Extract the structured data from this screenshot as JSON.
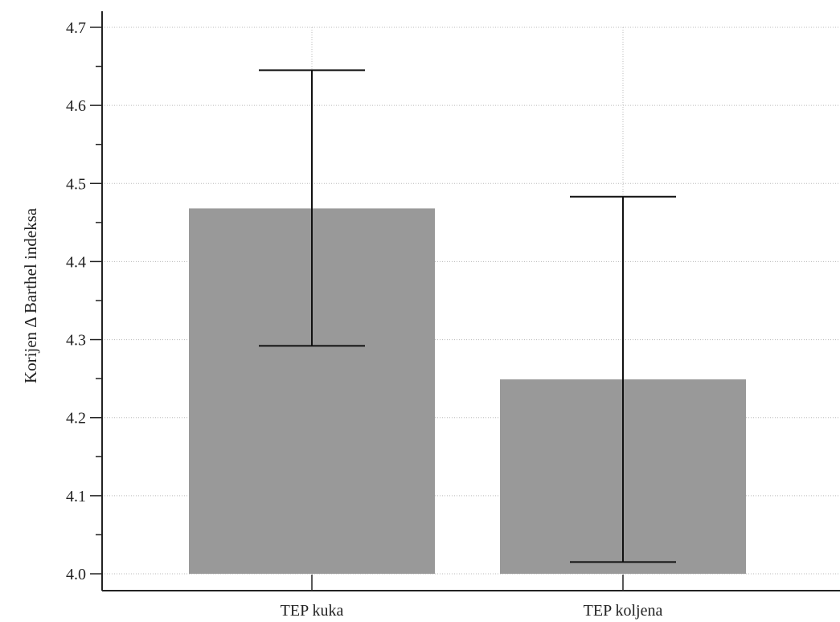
{
  "chart_data": {
    "type": "bar",
    "title": "",
    "xlabel": "",
    "ylabel": "Korijen Δ Barthel indeksa",
    "categories": [
      "TEP kuka",
      "TEP koljena"
    ],
    "values": [
      4.468,
      4.249
    ],
    "error_low": [
      4.292,
      4.015
    ],
    "error_high": [
      4.645,
      4.483
    ],
    "ylim": [
      4.0,
      4.72
    ],
    "yticks": [
      "4.0",
      "4.1",
      "4.2",
      "4.3",
      "4.4",
      "4.5",
      "4.6",
      "4.7"
    ],
    "grid": true,
    "legend": "none",
    "colors": {
      "bar": "#999999",
      "axis": "#222222",
      "grid": "#bbbbbb",
      "error": "#111111"
    }
  }
}
